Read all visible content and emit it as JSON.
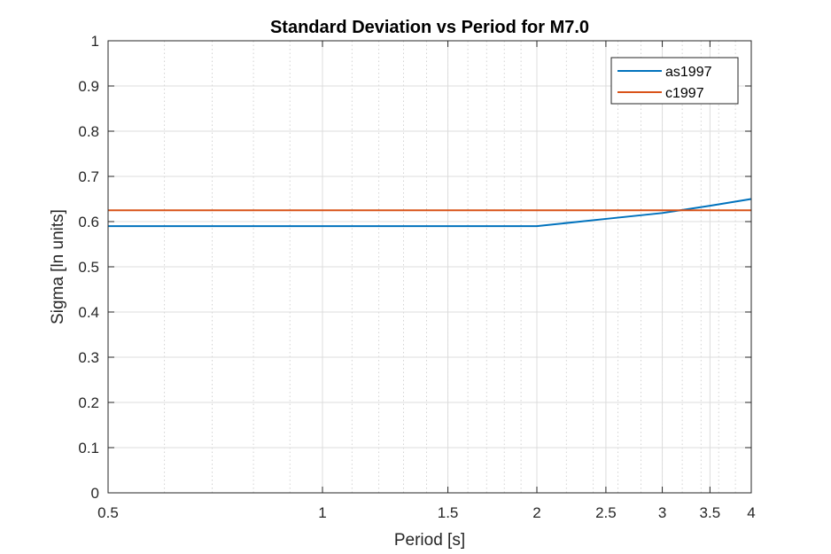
{
  "chart_data": {
    "type": "line",
    "title": "Standard Deviation vs Period for M7.0",
    "xlabel": "Period [s]",
    "ylabel": "Sigma [ln units]",
    "xscale": "log",
    "xlim": [
      0.5,
      4
    ],
    "ylim": [
      0,
      1
    ],
    "xticks": [
      0.5,
      1,
      1.5,
      2,
      2.5,
      3,
      3.5,
      4
    ],
    "xtick_labels": [
      "0.5",
      "1",
      "1.5",
      "2",
      "2.5",
      "3",
      "3.5",
      "4"
    ],
    "yticks": [
      0,
      0.1,
      0.2,
      0.3,
      0.4,
      0.5,
      0.6,
      0.7,
      0.8,
      0.9,
      1
    ],
    "ytick_labels": [
      "0",
      "0.1",
      "0.2",
      "0.3",
      "0.4",
      "0.5",
      "0.6",
      "0.7",
      "0.8",
      "0.9",
      "1"
    ],
    "grid": true,
    "minor_grid": true,
    "legend_position": "top-right",
    "series": [
      {
        "name": "as1997",
        "color": "#0072BD",
        "x": [
          0.5,
          2,
          2.5,
          3,
          3.5,
          4
        ],
        "y": [
          0.59,
          0.59,
          0.606,
          0.619,
          0.635,
          0.65
        ]
      },
      {
        "name": "c1997",
        "color": "#D95319",
        "x": [
          0.5,
          4
        ],
        "y": [
          0.625,
          0.625
        ]
      }
    ]
  }
}
